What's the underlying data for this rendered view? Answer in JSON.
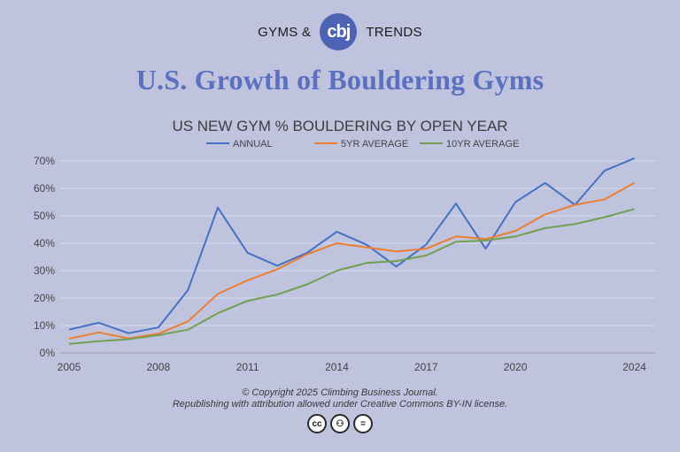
{
  "header": {
    "left_text": "GYMS &",
    "logo_text": "cbj",
    "right_text": "TRENDS"
  },
  "page_title": "U.S. Growth of Bouldering Gyms",
  "footer": {
    "copyright": "© Copyright 2025 Climbing Business Journal.",
    "license": "Republishing with attribution allowed under Creative Commons BY-IN license.",
    "icons": [
      "cc-icon",
      "by-person-icon",
      "nd-equals-icon"
    ],
    "icon_glyphs": [
      "cc",
      "⚇",
      "="
    ]
  },
  "colors": {
    "background": "#bfc3de",
    "title": "#5b70bf",
    "annual": "#4472c4",
    "avg5": "#ed7d31",
    "avg10": "#70a050"
  },
  "chart_data": {
    "type": "line",
    "title": "US NEW GYM % BOULDERING BY OPEN YEAR",
    "xlabel": "",
    "ylabel": "",
    "x": [
      2005,
      2006,
      2007,
      2008,
      2009,
      2010,
      2011,
      2012,
      2013,
      2014,
      2015,
      2016,
      2017,
      2018,
      2019,
      2020,
      2021,
      2022,
      2023,
      2024
    ],
    "x_ticks": [
      2005,
      2008,
      2011,
      2014,
      2017,
      2020,
      2024
    ],
    "x_tick_labels": [
      "2005",
      "2008",
      "2011",
      "2014",
      "2017",
      "2020",
      "2024"
    ],
    "y_ticks": [
      0,
      10,
      20,
      30,
      40,
      50,
      60,
      70
    ],
    "y_tick_labels": [
      "0%",
      "10%",
      "20%",
      "30%",
      "40%",
      "50%",
      "60%",
      "70%"
    ],
    "ylim": [
      0,
      70
    ],
    "xlim": [
      2005,
      2024.7
    ],
    "grid": true,
    "legend_position": "top",
    "series": [
      {
        "name": "ANNUAL",
        "color": "#4472c4",
        "values": [
          8.5,
          11,
          7.2,
          9.3,
          23,
          53,
          36.5,
          31.8,
          36.5,
          44.2,
          39.5,
          31.5,
          39.5,
          54.5,
          38,
          55,
          62,
          54,
          66.5,
          71
        ]
      },
      {
        "name": "5YR AVERAGE",
        "color": "#ed7d31",
        "values": [
          5.2,
          7.5,
          5.3,
          7,
          11.5,
          21.5,
          26.5,
          30.5,
          36,
          40,
          38.5,
          37,
          38,
          42.5,
          41.5,
          44.5,
          50.5,
          54,
          56,
          62
        ]
      },
      {
        "name": "10YR AVERAGE",
        "color": "#70a050",
        "values": [
          3.3,
          4.3,
          5,
          6.5,
          8.5,
          14.5,
          19,
          21.3,
          25,
          30,
          32.8,
          33.5,
          35.5,
          40.5,
          41,
          42.5,
          45.5,
          47,
          49.5,
          52.5
        ]
      }
    ]
  }
}
